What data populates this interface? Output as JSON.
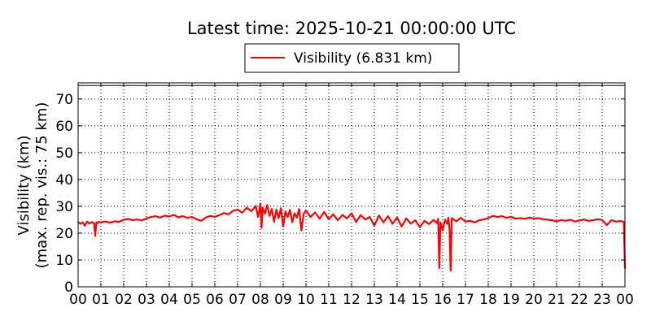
{
  "chart_data": {
    "type": "line",
    "title": "Latest time: 2025-10-21 00:00:00 UTC",
    "ylabel_line1": "Visibility (km)",
    "ylabel_line2": "(max. rep. vis.: 75 km)",
    "xlabel": "",
    "xlim": [
      0,
      24
    ],
    "ylim": [
      0,
      76
    ],
    "grid": true,
    "legend_placement": "top-center",
    "x_ticks": [
      "00",
      "01",
      "02",
      "03",
      "04",
      "05",
      "06",
      "07",
      "08",
      "09",
      "10",
      "11",
      "12",
      "13",
      "14",
      "15",
      "16",
      "17",
      "18",
      "19",
      "20",
      "21",
      "22",
      "23",
      "00"
    ],
    "y_ticks": [
      0,
      10,
      20,
      30,
      40,
      50,
      60,
      70
    ],
    "series": [
      {
        "name": "Visibility (6.831 km)",
        "color": "#ff0000",
        "x": [
          0.0,
          0.1,
          0.2,
          0.3,
          0.4,
          0.5,
          0.6,
          0.7,
          0.75,
          0.8,
          0.85,
          0.9,
          1.0,
          1.2,
          1.4,
          1.6,
          1.8,
          2.0,
          2.2,
          2.4,
          2.6,
          2.8,
          3.0,
          3.2,
          3.4,
          3.6,
          3.8,
          4.0,
          4.2,
          4.4,
          4.6,
          4.8,
          5.0,
          5.2,
          5.4,
          5.6,
          5.8,
          6.0,
          6.2,
          6.4,
          6.6,
          6.8,
          7.0,
          7.2,
          7.4,
          7.6,
          7.8,
          7.9,
          8.0,
          8.05,
          8.1,
          8.2,
          8.3,
          8.4,
          8.5,
          8.6,
          8.7,
          8.8,
          8.9,
          9.0,
          9.1,
          9.2,
          9.3,
          9.4,
          9.5,
          9.6,
          9.7,
          9.8,
          9.9,
          10.0,
          10.2,
          10.4,
          10.6,
          10.8,
          11.0,
          11.2,
          11.4,
          11.6,
          11.8,
          12.0,
          12.2,
          12.4,
          12.6,
          12.8,
          13.0,
          13.2,
          13.4,
          13.6,
          13.8,
          14.0,
          14.2,
          14.4,
          14.6,
          14.8,
          15.0,
          15.2,
          15.4,
          15.6,
          15.75,
          15.8,
          15.85,
          15.9,
          16.0,
          16.1,
          16.2,
          16.25,
          16.3,
          16.35,
          16.4,
          16.6,
          16.8,
          17.0,
          17.2,
          17.4,
          17.6,
          17.8,
          18.0,
          18.2,
          18.4,
          18.6,
          18.8,
          19.0,
          19.2,
          19.4,
          19.6,
          19.8,
          20.0,
          20.2,
          20.4,
          20.6,
          20.8,
          21.0,
          21.2,
          21.4,
          21.6,
          21.8,
          22.0,
          22.2,
          22.4,
          22.6,
          22.8,
          23.0,
          23.2,
          23.4,
          23.6,
          23.8,
          23.95,
          24.0
        ],
        "values": [
          24.2,
          23.5,
          24.0,
          22.8,
          24.3,
          23.6,
          24.1,
          23.8,
          19.0,
          24.0,
          23.7,
          24.2,
          24.0,
          24.3,
          23.9,
          24.4,
          24.2,
          25.0,
          25.3,
          24.8,
          25.1,
          24.7,
          25.5,
          26.0,
          26.3,
          25.8,
          26.5,
          26.2,
          26.8,
          25.9,
          26.3,
          25.7,
          26.0,
          25.2,
          24.6,
          25.8,
          26.4,
          26.1,
          26.7,
          27.5,
          27.0,
          28.3,
          28.8,
          27.6,
          29.5,
          28.2,
          30.1,
          26.0,
          31.0,
          22.0,
          29.5,
          27.3,
          30.5,
          26.4,
          29.0,
          24.2,
          28.8,
          25.6,
          29.3,
          22.5,
          28.1,
          26.0,
          28.7,
          24.1,
          27.4,
          25.8,
          29.0,
          21.0,
          27.2,
          28.5,
          26.0,
          27.7,
          25.4,
          27.9,
          25.2,
          27.0,
          24.8,
          26.8,
          25.5,
          27.4,
          24.2,
          26.7,
          25.1,
          26.0,
          22.8,
          26.6,
          24.0,
          26.3,
          23.5,
          25.8,
          22.5,
          25.5,
          23.6,
          24.8,
          22.2,
          24.6,
          23.4,
          24.9,
          23.8,
          25.3,
          7.0,
          24.0,
          21.0,
          25.0,
          23.5,
          25.8,
          21.5,
          6.0,
          25.6,
          24.4,
          25.7,
          24.3,
          24.6,
          24.0,
          24.8,
          25.1,
          25.6,
          26.4,
          26.0,
          26.3,
          25.7,
          26.1,
          25.4,
          25.6,
          25.3,
          25.8,
          25.4,
          25.6,
          25.2,
          25.0,
          24.8,
          24.4,
          24.9,
          24.6,
          25.0,
          24.3,
          24.7,
          25.1,
          24.6,
          24.8,
          25.2,
          24.9,
          23.0,
          24.8,
          24.3,
          24.5,
          24.2,
          6.8
        ]
      }
    ]
  }
}
